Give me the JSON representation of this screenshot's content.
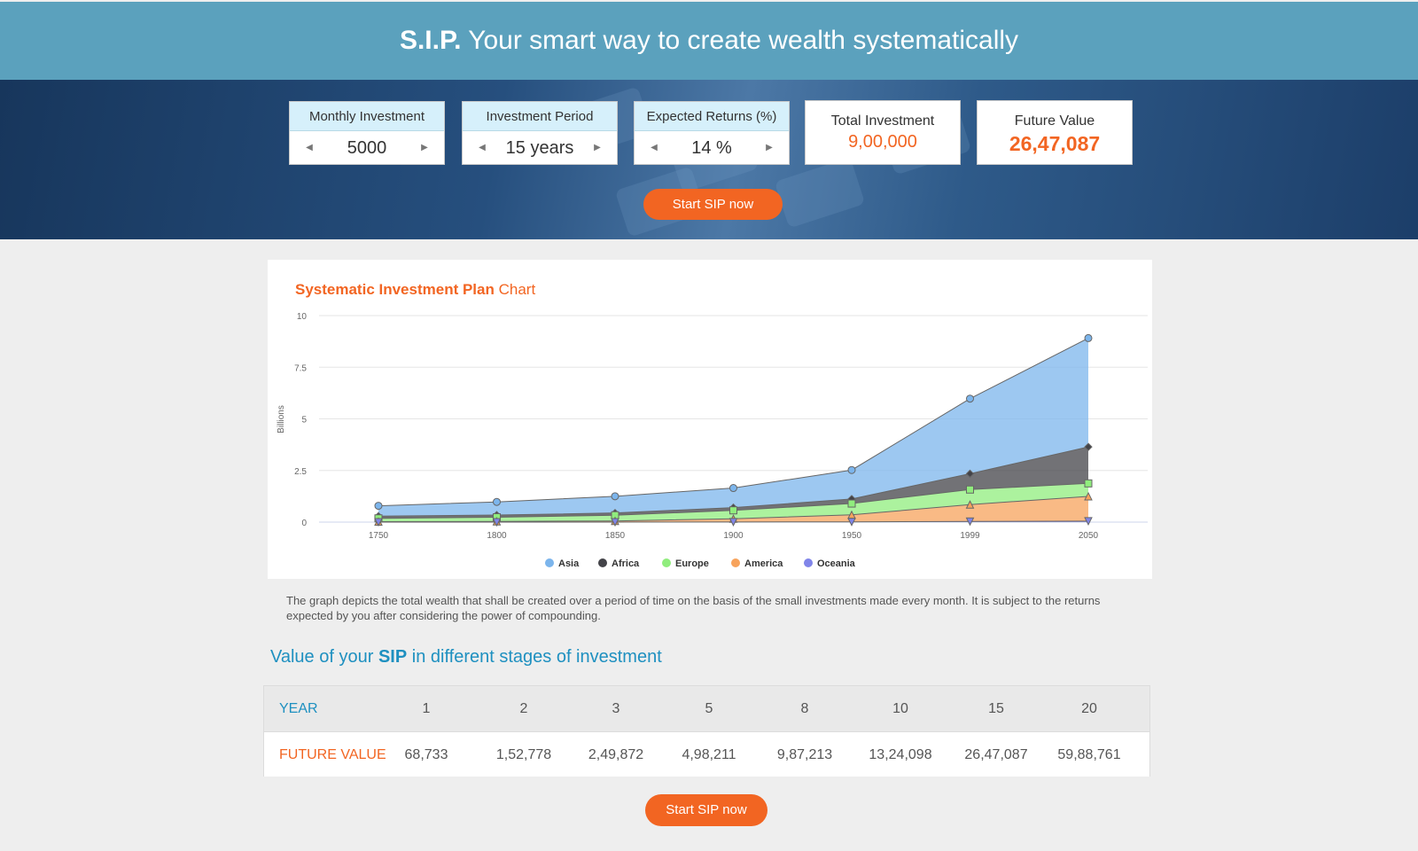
{
  "header": {
    "brand": "S.I.P.",
    "tagline": "Your smart way to create wealth systematically"
  },
  "calculator": {
    "monthly": {
      "label": "Monthly Investment",
      "value": "5000"
    },
    "period": {
      "label": "Investment Period",
      "value": "15 years"
    },
    "returns": {
      "label": "Expected Returns (%)",
      "value": "14 %"
    }
  },
  "results": {
    "total": {
      "label": "Total Investment",
      "value": "9,00,000"
    },
    "future": {
      "label": "Future Value",
      "value": "26,47,087"
    }
  },
  "cta": "Start SIP now",
  "chart_section": {
    "title_bold": "Systematic Investment Plan",
    "title_rest": "Chart"
  },
  "chart_data": {
    "type": "area",
    "stacked": true,
    "ylabel": "Billions",
    "ylim": [
      0,
      10
    ],
    "yticks": [
      0,
      2.5,
      5,
      7.5,
      10
    ],
    "categories": [
      "1750",
      "1800",
      "1850",
      "1900",
      "1950",
      "1999",
      "2050"
    ],
    "series": [
      {
        "name": "Asia",
        "color": "#7cb5ec",
        "values": [
          0.502,
          0.635,
          0.809,
          0.947,
          1.402,
          3.634,
          5.268
        ]
      },
      {
        "name": "Africa",
        "color": "#434348",
        "values": [
          0.106,
          0.107,
          0.111,
          0.133,
          0.221,
          0.767,
          1.766
        ]
      },
      {
        "name": "Europe",
        "color": "#90ed7d",
        "values": [
          0.163,
          0.203,
          0.276,
          0.408,
          0.547,
          0.729,
          0.628
        ]
      },
      {
        "name": "America",
        "color": "#f7a35c",
        "values": [
          0.018,
          0.031,
          0.054,
          0.156,
          0.339,
          0.818,
          1.201
        ]
      },
      {
        "name": "Oceania",
        "color": "#8085e9",
        "values": [
          0.002,
          0.002,
          0.002,
          0.006,
          0.013,
          0.03,
          0.046
        ]
      }
    ],
    "grid": true,
    "legend": "bottom-center"
  },
  "description": "The graph depicts the total wealth that shall be created over a period of time on the basis of the small investments made every month. It is subject to the returns expected by you after considering the power of compounding.",
  "stages": {
    "heading_pre": "Value of your",
    "heading_bold": "SIP",
    "heading_post": "in different stages of investment",
    "year_label": "YEAR",
    "value_label": "FUTURE VALUE",
    "years": [
      "1",
      "2",
      "3",
      "5",
      "8",
      "10",
      "15",
      "20"
    ],
    "values": [
      "68,733",
      "1,52,778",
      "2,49,872",
      "4,98,211",
      "9,87,213",
      "13,24,098",
      "26,47,087",
      "59,88,761"
    ]
  },
  "icons": {
    "decrement": "triangle-left-icon",
    "increment": "triangle-right-icon"
  },
  "colors": {
    "accent": "#f26522",
    "header": "#5ba1bd",
    "link": "#1e90c0",
    "input_label_bg": "#d6f0fb"
  }
}
